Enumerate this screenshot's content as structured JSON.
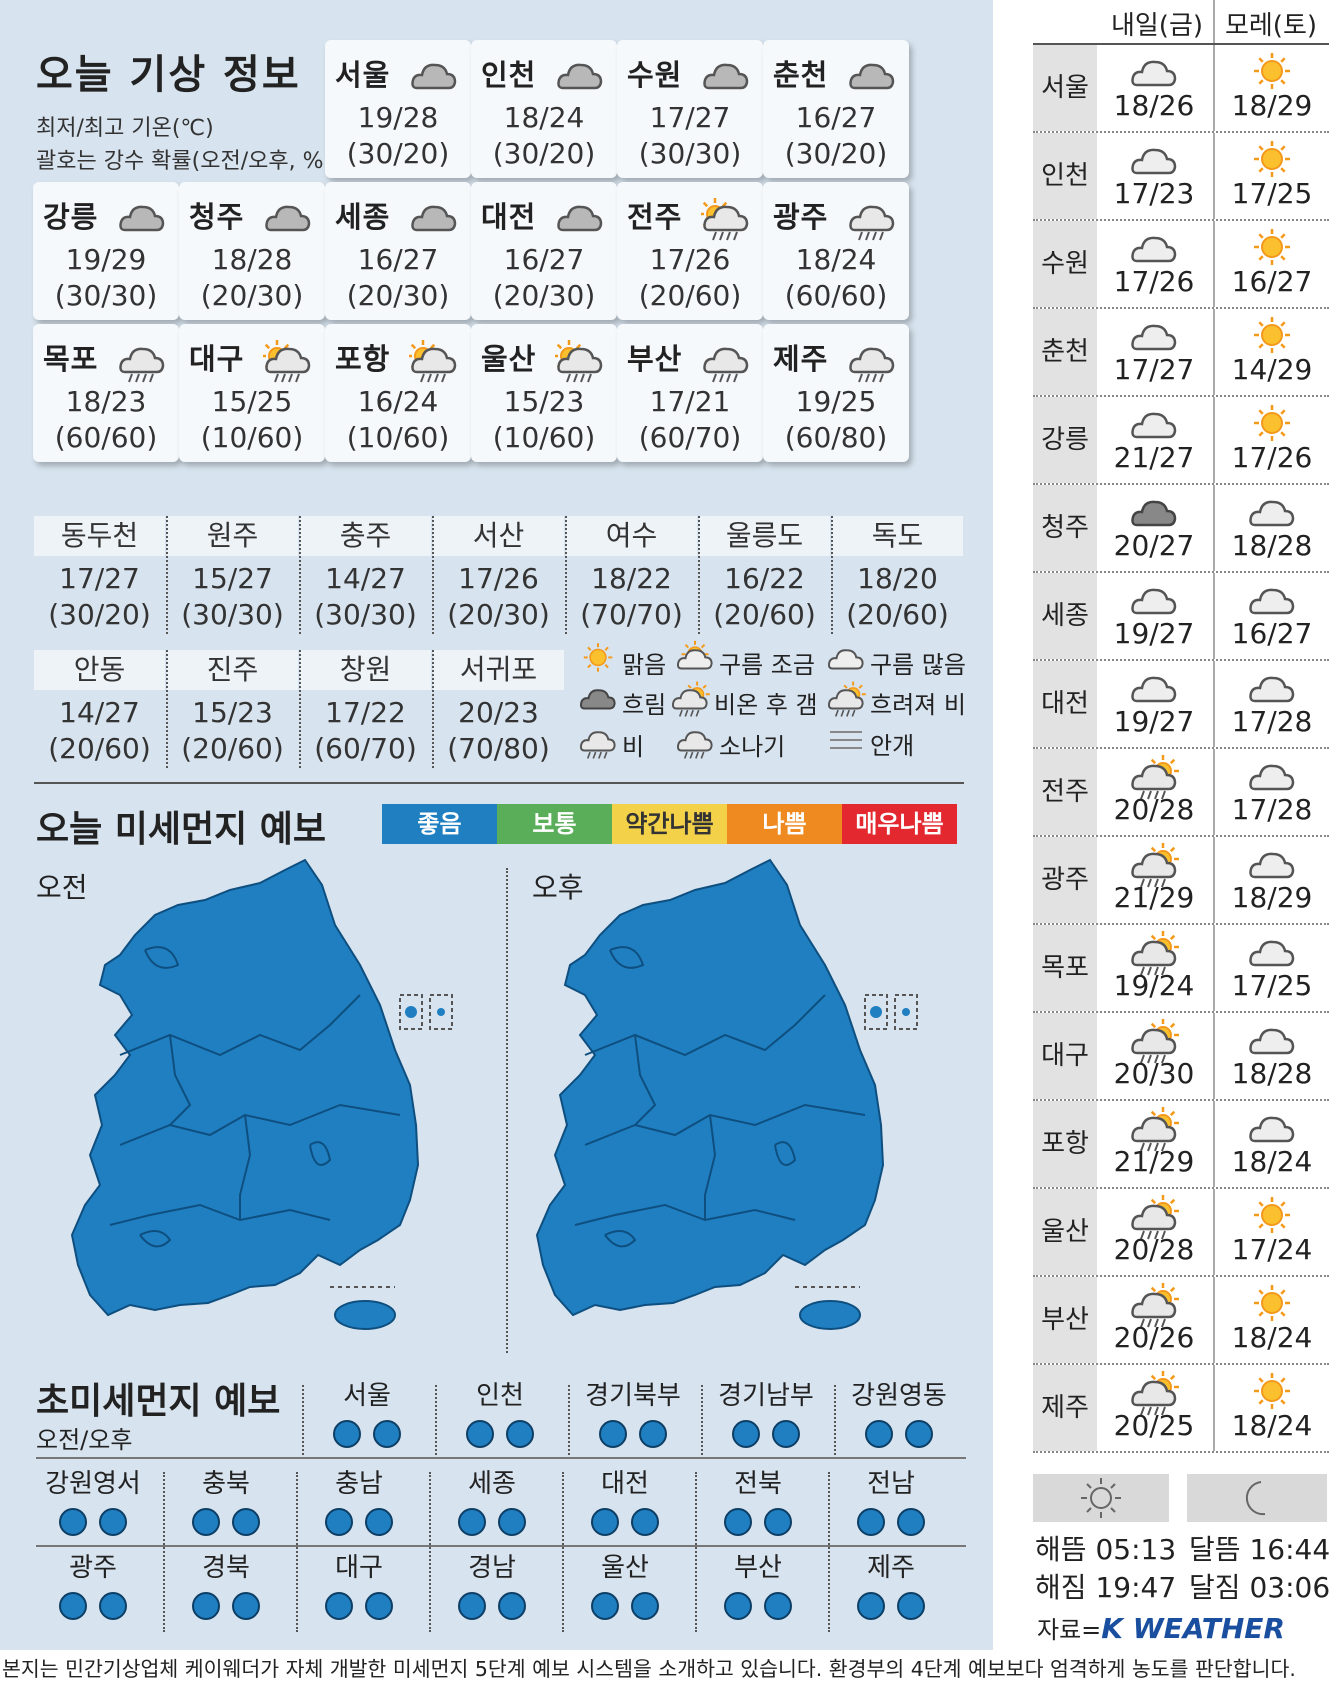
{
  "title": "오늘 기상 정보",
  "subtitle1": "최저/최고 기온(℃)",
  "subtitle2": "괄호는 강수 확률(오전/오후, %)",
  "cards": [
    {
      "name": "서울",
      "temp": "19/28",
      "prob": "(30/20)",
      "icon": "cloudy"
    },
    {
      "name": "인천",
      "temp": "18/24",
      "prob": "(30/20)",
      "icon": "cloudy"
    },
    {
      "name": "수원",
      "temp": "17/27",
      "prob": "(30/30)",
      "icon": "cloudy"
    },
    {
      "name": "춘천",
      "temp": "16/27",
      "prob": "(30/20)",
      "icon": "cloudy"
    },
    {
      "name": "강릉",
      "temp": "19/29",
      "prob": "(30/30)",
      "icon": "cloudy"
    },
    {
      "name": "청주",
      "temp": "18/28",
      "prob": "(20/30)",
      "icon": "cloudy"
    },
    {
      "name": "세종",
      "temp": "16/27",
      "prob": "(20/30)",
      "icon": "cloudy"
    },
    {
      "name": "대전",
      "temp": "16/27",
      "prob": "(20/30)",
      "icon": "cloudy"
    },
    {
      "name": "전주",
      "temp": "17/26",
      "prob": "(20/60)",
      "icon": "sun-rain"
    },
    {
      "name": "광주",
      "temp": "18/24",
      "prob": "(60/60)",
      "icon": "rain"
    },
    {
      "name": "목포",
      "temp": "18/23",
      "prob": "(60/60)",
      "icon": "rain"
    },
    {
      "name": "대구",
      "temp": "15/25",
      "prob": "(10/60)",
      "icon": "sun-rain"
    },
    {
      "name": "포항",
      "temp": "16/24",
      "prob": "(10/60)",
      "icon": "sun-rain"
    },
    {
      "name": "울산",
      "temp": "15/23",
      "prob": "(10/60)",
      "icon": "sun-rain"
    },
    {
      "name": "부산",
      "temp": "17/21",
      "prob": "(60/70)",
      "icon": "rain"
    },
    {
      "name": "제주",
      "temp": "19/25",
      "prob": "(60/80)",
      "icon": "rain"
    }
  ],
  "minor1": [
    {
      "name": "동두천",
      "temp": "17/27",
      "prob": "(30/20)"
    },
    {
      "name": "원주",
      "temp": "15/27",
      "prob": "(30/30)"
    },
    {
      "name": "충주",
      "temp": "14/27",
      "prob": "(30/30)"
    },
    {
      "name": "서산",
      "temp": "17/26",
      "prob": "(20/30)"
    },
    {
      "name": "여수",
      "temp": "18/22",
      "prob": "(70/70)"
    },
    {
      "name": "울릉도",
      "temp": "16/22",
      "prob": "(20/60)"
    },
    {
      "name": "독도",
      "temp": "18/20",
      "prob": "(20/60)"
    }
  ],
  "minor2": [
    {
      "name": "안동",
      "temp": "14/27",
      "prob": "(20/60)"
    },
    {
      "name": "진주",
      "temp": "15/23",
      "prob": "(20/60)"
    },
    {
      "name": "창원",
      "temp": "17/22",
      "prob": "(60/70)"
    },
    {
      "name": "서귀포",
      "temp": "20/23",
      "prob": "(70/80)"
    }
  ],
  "legend": {
    "clear": "맑음",
    "few_clouds": "구름 조금",
    "many_clouds": "구름 많음",
    "overcast": "흐림",
    "rain_then_clear": "비온 후 갬",
    "cloudy_then_rain": "흐려져 비",
    "rain": "비",
    "shower": "소나기",
    "fog": "안개"
  },
  "dust": {
    "title": "오늘 미세먼지 예보",
    "am": "오전",
    "pm": "오후",
    "levels": [
      "좋음",
      "보통",
      "약간나쁨",
      "나쁨",
      "매우나쁨"
    ],
    "level_colors": [
      "#1f7fc1",
      "#5aae5a",
      "#f3d24a",
      "#ee8a20",
      "#e3292f"
    ],
    "am_level": "좋음",
    "pm_level": "좋음"
  },
  "pm25": {
    "title": "초미세먼지 예보",
    "sub": "오전/오후",
    "row1": [
      "서울",
      "인천",
      "경기북부",
      "경기남부",
      "강원영동"
    ],
    "row2": [
      "강원영서",
      "충북",
      "충남",
      "세종",
      "대전",
      "전북",
      "전남"
    ],
    "row3": [
      "광주",
      "경북",
      "대구",
      "경남",
      "울산",
      "부산",
      "제주"
    ],
    "level": "좋음"
  },
  "forecast": {
    "col1": "내일(금)",
    "col2": "모레(토)",
    "rows": [
      {
        "city": "서울",
        "d1": "18/26",
        "i1": "cloud",
        "d2": "18/29",
        "i2": "sun"
      },
      {
        "city": "인천",
        "d1": "17/23",
        "i1": "cloud",
        "d2": "17/25",
        "i2": "sun"
      },
      {
        "city": "수원",
        "d1": "17/26",
        "i1": "cloud",
        "d2": "16/27",
        "i2": "sun"
      },
      {
        "city": "춘천",
        "d1": "17/27",
        "i1": "cloud",
        "d2": "14/29",
        "i2": "sun"
      },
      {
        "city": "강릉",
        "d1": "21/27",
        "i1": "cloud",
        "d2": "17/26",
        "i2": "sun"
      },
      {
        "city": "청주",
        "d1": "20/27",
        "i1": "overcast",
        "d2": "18/28",
        "i2": "cloud"
      },
      {
        "city": "세종",
        "d1": "19/27",
        "i1": "cloud",
        "d2": "16/27",
        "i2": "cloud"
      },
      {
        "city": "대전",
        "d1": "19/27",
        "i1": "cloud",
        "d2": "17/28",
        "i2": "cloud"
      },
      {
        "city": "전주",
        "d1": "20/28",
        "i1": "rain-sun",
        "d2": "17/28",
        "i2": "cloud"
      },
      {
        "city": "광주",
        "d1": "21/29",
        "i1": "rain-sun",
        "d2": "18/29",
        "i2": "cloud"
      },
      {
        "city": "목포",
        "d1": "19/24",
        "i1": "rain-sun",
        "d2": "17/25",
        "i2": "cloud"
      },
      {
        "city": "대구",
        "d1": "20/30",
        "i1": "rain-sun",
        "d2": "18/28",
        "i2": "cloud"
      },
      {
        "city": "포항",
        "d1": "21/29",
        "i1": "rain-sun",
        "d2": "18/24",
        "i2": "cloud"
      },
      {
        "city": "울산",
        "d1": "20/28",
        "i1": "rain-sun",
        "d2": "17/24",
        "i2": "sun"
      },
      {
        "city": "부산",
        "d1": "20/26",
        "i1": "rain-sun",
        "d2": "18/24",
        "i2": "sun"
      },
      {
        "city": "제주",
        "d1": "20/25",
        "i1": "rain-sun",
        "d2": "18/24",
        "i2": "sun"
      }
    ]
  },
  "sun": {
    "rise_label": "해뜸",
    "rise": "05:13",
    "set_label": "해짐",
    "set": "19:47"
  },
  "moon": {
    "rise_label": "달뜸",
    "rise": "16:44",
    "set_label": "달짐",
    "set": "03:06"
  },
  "source_label": "자료=",
  "source": "K WEATHER",
  "footer": "본지는 민간기상업체 케이웨더가 자체 개발한 미세먼지 5단계 예보 시스템을 소개하고 있습니다. 환경부의 4단계 예보보다 엄격하게 농도를 판단합니다."
}
